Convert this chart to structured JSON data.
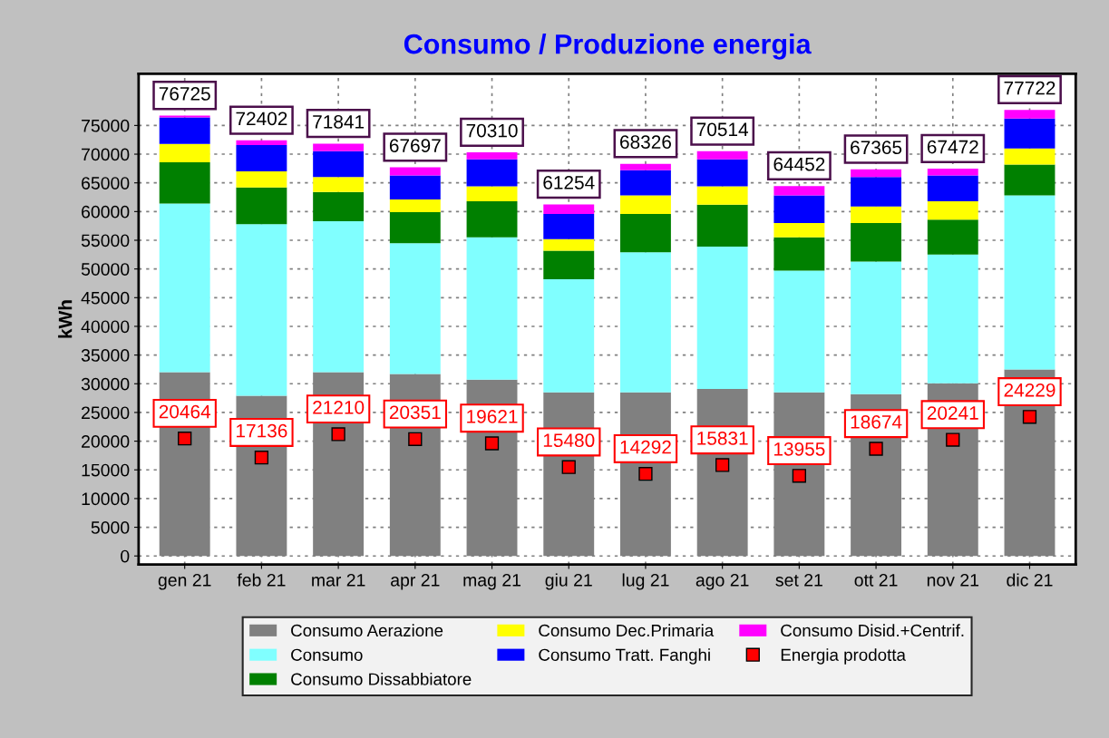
{
  "chart_data": {
    "type": "bar",
    "stacked": true,
    "title": "Consumo / Produzione energia",
    "ylabel": "kWh",
    "categories": [
      "gen 21",
      "feb 21",
      "mar 21",
      "apr 21",
      "mag 21",
      "giu 21",
      "lug 21",
      "ago 21",
      "set 21",
      "ott 21",
      "nov 21",
      "dic 21"
    ],
    "series": [
      {
        "name": "Consumo Aerazione",
        "color": "#808080",
        "values": [
          32000,
          27900,
          32000,
          31700,
          30700,
          28500,
          28500,
          29100,
          28500,
          28200,
          30100,
          32500
        ]
      },
      {
        "name": "Consumo",
        "color": "#80ffff",
        "values": [
          29400,
          29900,
          26300,
          22800,
          24800,
          19700,
          24400,
          24800,
          21200,
          23100,
          22400,
          30300
        ]
      },
      {
        "name": "Consumo Dissabbiatore",
        "color": "#008000",
        "values": [
          7200,
          6400,
          5100,
          5400,
          6300,
          5000,
          6700,
          7300,
          5800,
          6700,
          6100,
          5400
        ]
      },
      {
        "name": "Consumo Dec.Primaria",
        "color": "#ffff00",
        "values": [
          3200,
          2800,
          2600,
          2200,
          2600,
          2000,
          3200,
          3200,
          2500,
          2900,
          3200,
          2800
        ]
      },
      {
        "name": "Consumo Tratt. Fanghi",
        "color": "#0000ff",
        "values": [
          4600,
          4600,
          4500,
          4200,
          4700,
          4400,
          4400,
          4700,
          4800,
          5100,
          4500,
          5200
        ]
      },
      {
        "name": "Consumo Disid.+Centrif.",
        "color": "#ff00ff",
        "values": [
          325,
          802,
          1341,
          1397,
          1210,
          1654,
          1126,
          1414,
          1652,
          1365,
          1172,
          1522
        ]
      },
      {
        "name": "Energia prodotta",
        "type": "scatter",
        "marker": "square",
        "color": "#ff0000",
        "values": [
          20464,
          17136,
          21210,
          20351,
          19621,
          15480,
          14292,
          15831,
          13955,
          18674,
          20241,
          24229
        ],
        "value_labels": [
          "20464",
          "17136",
          "21210",
          "20351",
          "19621",
          "15480",
          "14292",
          "15831",
          "13955",
          "18674",
          "20241",
          "24229"
        ]
      }
    ],
    "totals": [
      "76725",
      "72402",
      "71841",
      "67697",
      "70310",
      "61254",
      "68326",
      "70514",
      "64452",
      "67365",
      "67472",
      "77722"
    ],
    "ylim": [
      -1500,
      84000
    ],
    "yticks": [
      0,
      5000,
      10000,
      15000,
      20000,
      25000,
      30000,
      35000,
      40000,
      45000,
      50000,
      55000,
      60000,
      65000,
      70000,
      75000
    ],
    "grid": true,
    "legend": "bottom"
  }
}
